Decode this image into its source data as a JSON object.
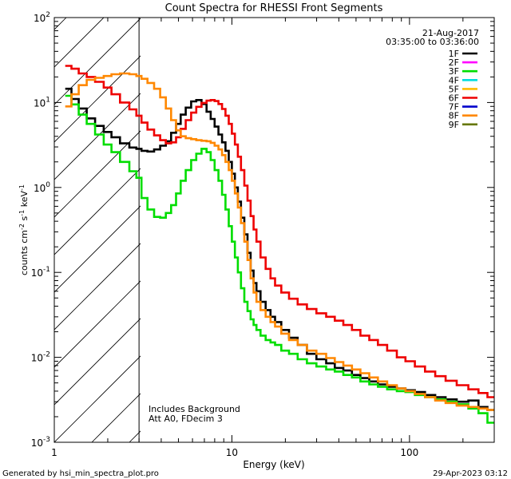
{
  "chart_data": {
    "type": "line",
    "title": "Count Spectra for RHESSI Front Segments",
    "xlabel": "Energy (keV)",
    "ylabel_base": "counts cm",
    "ylabel_exp1": "-2",
    "ylabel_mid1": " s",
    "ylabel_exp2": "-1",
    "ylabel_mid2": " keV",
    "ylabel_exp3": "-1",
    "xscale": "log",
    "yscale": "log",
    "xlim": [
      1,
      300
    ],
    "ylim": [
      0.001,
      100
    ],
    "x_ticks": [
      {
        "value": 1,
        "label": "1"
      },
      {
        "value": 10,
        "label": "10"
      },
      {
        "value": 100,
        "label": "100"
      }
    ],
    "y_ticks": [
      {
        "value": 0.001,
        "mant": "10",
        "exp": "-3"
      },
      {
        "value": 0.01,
        "mant": "10",
        "exp": "-2"
      },
      {
        "value": 0.1,
        "mant": "10",
        "exp": "-1"
      },
      {
        "value": 1,
        "mant": "10",
        "exp": "0"
      },
      {
        "value": 10,
        "mant": "10",
        "exp": "1"
      },
      {
        "value": 100,
        "mant": "10",
        "exp": "2"
      }
    ],
    "date": "21-Aug-2017",
    "time_range": "03:35:00 to 03:36:00",
    "shaded_region": {
      "x_min": 1,
      "x_max": 3,
      "hatch": "diagonal"
    },
    "annotations": [
      "Includes Background",
      "Att A0, FDecim 3"
    ],
    "legend_position": "top-right",
    "legend": [
      {
        "label": "1F",
        "color": "#000000"
      },
      {
        "label": "2F",
        "color": "#ff00ff"
      },
      {
        "label": "3F",
        "color": "#00dd00"
      },
      {
        "label": "4F",
        "color": "#00dddd"
      },
      {
        "label": "5F",
        "color": "#ffbb00"
      },
      {
        "label": "6F",
        "color": "#ee0000"
      },
      {
        "label": "7F",
        "color": "#0000cc"
      },
      {
        "label": "8F",
        "color": "#ff8800"
      },
      {
        "label": "9F",
        "color": "#667700"
      }
    ],
    "series": [
      {
        "name": "1F",
        "color": "#000000",
        "x": [
          1.2,
          1.3,
          1.45,
          1.6,
          1.8,
          2.0,
          2.2,
          2.5,
          2.8,
          3.0,
          3.2,
          3.5,
          3.8,
          4.1,
          4.4,
          4.7,
          5.0,
          5.3,
          5.7,
          6.1,
          6.5,
          7.0,
          7.4,
          7.8,
          8.2,
          8.6,
          9.0,
          9.4,
          9.8,
          10.2,
          10.6,
          11.0,
          11.5,
          12,
          12.5,
          13,
          13.5,
          14,
          15,
          16,
          17,
          18,
          20,
          22,
          25,
          28,
          32,
          36,
          40,
          45,
          50,
          56,
          63,
          70,
          80,
          90,
          100,
          115,
          130,
          150,
          170,
          200,
          230,
          260,
          290
        ],
        "values": [
          14.5,
          11,
          8.5,
          6.5,
          5.3,
          4.5,
          3.9,
          3.3,
          2.95,
          2.85,
          2.7,
          2.65,
          2.8,
          3.1,
          3.5,
          4.4,
          5.6,
          7.2,
          8.7,
          10.3,
          10.7,
          9.6,
          7.8,
          6.4,
          5.2,
          4.2,
          3.4,
          2.7,
          2.0,
          1.45,
          1.0,
          0.68,
          0.44,
          0.28,
          0.17,
          0.105,
          0.075,
          0.06,
          0.045,
          0.036,
          0.03,
          0.026,
          0.021,
          0.017,
          0.014,
          0.011,
          0.0095,
          0.0085,
          0.0075,
          0.007,
          0.0062,
          0.0057,
          0.0052,
          0.0048,
          0.0045,
          0.0043,
          0.0041,
          0.0039,
          0.0036,
          0.0034,
          0.0032,
          0.003,
          0.0031,
          0.0026,
          0.0024
        ]
      },
      {
        "name": "3F",
        "color": "#00dd00",
        "x": [
          1.2,
          1.3,
          1.45,
          1.6,
          1.8,
          2.0,
          2.2,
          2.5,
          2.8,
          3.0,
          3.2,
          3.5,
          3.8,
          4.1,
          4.4,
          4.7,
          5.0,
          5.3,
          5.7,
          6.1,
          6.5,
          7.0,
          7.4,
          7.8,
          8.2,
          8.6,
          9.0,
          9.4,
          9.8,
          10.2,
          10.6,
          11.0,
          11.5,
          12,
          12.5,
          13,
          13.5,
          14,
          15,
          16,
          17,
          18,
          20,
          22,
          25,
          28,
          32,
          36,
          40,
          45,
          50,
          56,
          63,
          70,
          80,
          90,
          100,
          115,
          130,
          150,
          170,
          200,
          230,
          260,
          290
        ],
        "values": [
          12,
          9.5,
          7.2,
          5.6,
          4.2,
          3.2,
          2.6,
          2.0,
          1.55,
          1.3,
          0.75,
          0.55,
          0.45,
          0.44,
          0.5,
          0.62,
          0.85,
          1.2,
          1.6,
          2.1,
          2.5,
          2.85,
          2.6,
          2.1,
          1.6,
          1.2,
          0.82,
          0.55,
          0.35,
          0.23,
          0.15,
          0.1,
          0.065,
          0.045,
          0.035,
          0.028,
          0.024,
          0.021,
          0.018,
          0.016,
          0.015,
          0.014,
          0.012,
          0.011,
          0.0095,
          0.0085,
          0.0078,
          0.0072,
          0.0068,
          0.0062,
          0.0058,
          0.0052,
          0.0048,
          0.0045,
          0.0042,
          0.004,
          0.0039,
          0.0036,
          0.0034,
          0.0032,
          0.003,
          0.0028,
          0.0025,
          0.0022,
          0.0017
        ]
      },
      {
        "name": "6F",
        "color": "#ee0000",
        "x": [
          1.2,
          1.3,
          1.45,
          1.6,
          1.8,
          2.0,
          2.2,
          2.5,
          2.8,
          3.0,
          3.2,
          3.5,
          3.8,
          4.1,
          4.4,
          4.7,
          5.0,
          5.3,
          5.7,
          6.1,
          6.5,
          7.0,
          7.4,
          7.8,
          8.2,
          8.6,
          9.0,
          9.4,
          9.8,
          10.2,
          10.6,
          11.0,
          11.5,
          12,
          12.5,
          13,
          13.5,
          14,
          15,
          16,
          17,
          18,
          20,
          22,
          25,
          28,
          32,
          36,
          40,
          45,
          50,
          56,
          63,
          70,
          80,
          90,
          100,
          115,
          130,
          150,
          170,
          200,
          230,
          260,
          290
        ],
        "values": [
          27,
          25,
          22,
          20,
          17.5,
          15,
          12.5,
          10,
          8.3,
          7,
          5.8,
          4.8,
          4.1,
          3.6,
          3.3,
          3.4,
          3.9,
          4.9,
          6.2,
          7.6,
          8.9,
          9.9,
          10.5,
          10.7,
          10.4,
          9.6,
          8.4,
          7.0,
          5.6,
          4.3,
          3.2,
          2.3,
          1.6,
          1.05,
          0.7,
          0.46,
          0.32,
          0.23,
          0.15,
          0.11,
          0.085,
          0.07,
          0.058,
          0.049,
          0.042,
          0.037,
          0.033,
          0.03,
          0.027,
          0.024,
          0.021,
          0.018,
          0.016,
          0.014,
          0.012,
          0.01,
          0.009,
          0.0078,
          0.0068,
          0.006,
          0.0053,
          0.0047,
          0.0042,
          0.0038,
          0.0034
        ]
      },
      {
        "name": "8F",
        "color": "#ff8800",
        "x": [
          1.2,
          1.3,
          1.45,
          1.6,
          1.8,
          2.0,
          2.2,
          2.5,
          2.8,
          3.0,
          3.2,
          3.5,
          3.8,
          4.1,
          4.4,
          4.7,
          5.0,
          5.3,
          5.7,
          6.1,
          6.5,
          7.0,
          7.4,
          7.8,
          8.2,
          8.6,
          9.0,
          9.4,
          9.8,
          10.2,
          10.6,
          11.0,
          11.5,
          12,
          12.5,
          13,
          13.5,
          14,
          15,
          16,
          17,
          18,
          20,
          22,
          25,
          28,
          32,
          36,
          40,
          45,
          50,
          56,
          63,
          70,
          80,
          90,
          100,
          115,
          130,
          150,
          170,
          200,
          230,
          260,
          290
        ],
        "values": [
          9,
          12.5,
          16,
          18.5,
          19.5,
          20.5,
          21.5,
          22,
          21.5,
          20.5,
          19,
          17,
          14.5,
          11.5,
          8.5,
          6.2,
          4.7,
          4.0,
          3.8,
          3.7,
          3.6,
          3.55,
          3.5,
          3.35,
          3.1,
          2.8,
          2.4,
          2.0,
          1.6,
          1.2,
          0.85,
          0.58,
          0.38,
          0.23,
          0.14,
          0.085,
          0.058,
          0.045,
          0.036,
          0.03,
          0.026,
          0.023,
          0.019,
          0.016,
          0.014,
          0.012,
          0.011,
          0.0098,
          0.0088,
          0.008,
          0.0072,
          0.0065,
          0.0058,
          0.0052,
          0.0047,
          0.0043,
          0.004,
          0.0037,
          0.0034,
          0.0031,
          0.0029,
          0.0027,
          0.0026,
          0.0025,
          0.0024
        ]
      }
    ]
  },
  "footer": {
    "left": "Generated by hsi_min_spectra_plot.pro",
    "right": "29-Apr-2023 03:12"
  }
}
